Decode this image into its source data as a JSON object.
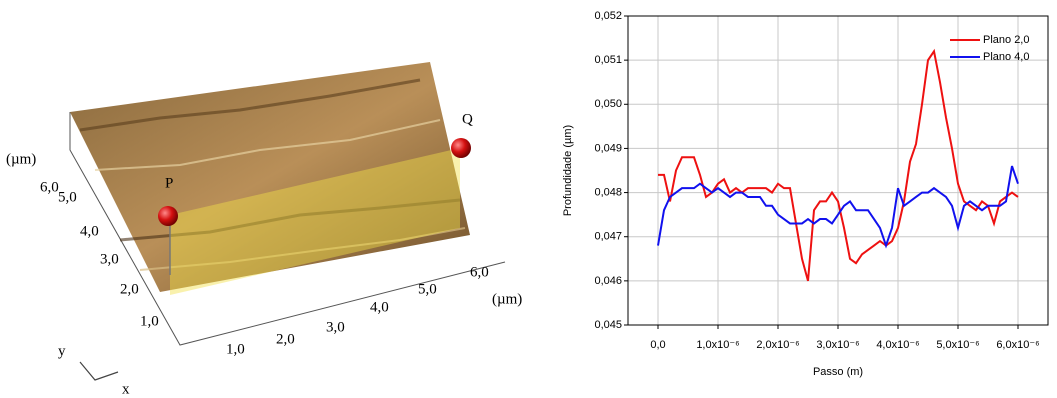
{
  "surface": {
    "unit_y": "(µm)",
    "y_labels": [
      "6,0",
      "5,0",
      "4,0",
      "3,0",
      "2,0",
      "1,0"
    ],
    "x_labels": [
      "1,0",
      "2,0",
      "3,0",
      "4,0",
      "5,0",
      "6,0"
    ],
    "unit_x": "(µm)",
    "point_p": "P",
    "point_q": "Q",
    "axis_y": "y",
    "axis_x": "x"
  },
  "chart_data": {
    "type": "line",
    "x_label": "Passo (m)",
    "y_label": "Profundidade (µm)",
    "xlim": [
      -5e-07,
      6.5e-06
    ],
    "ylim": [
      0.045,
      0.052
    ],
    "xticks": [
      {
        "value": 0,
        "label": "0,0"
      },
      {
        "value": 1e-06,
        "label": "1,0x10⁻⁶"
      },
      {
        "value": 2e-06,
        "label": "2,0x10⁻⁶"
      },
      {
        "value": 3e-06,
        "label": "3,0x10⁻⁶"
      },
      {
        "value": 4e-06,
        "label": "4,0x10⁻⁶"
      },
      {
        "value": 5e-06,
        "label": "5,0x10⁻⁶"
      },
      {
        "value": 6e-06,
        "label": "6,0x10⁻⁶"
      }
    ],
    "yticks": [
      {
        "value": 0.045,
        "label": "0,045"
      },
      {
        "value": 0.046,
        "label": "0,046"
      },
      {
        "value": 0.047,
        "label": "0,047"
      },
      {
        "value": 0.048,
        "label": "0,048"
      },
      {
        "value": 0.049,
        "label": "0,049"
      },
      {
        "value": 0.05,
        "label": "0,050"
      },
      {
        "value": 0.051,
        "label": "0,051"
      },
      {
        "value": 0.052,
        "label": "0,052"
      }
    ],
    "grid": true,
    "legend": "upper right",
    "x": [
      0,
      1e-07,
      2e-07,
      3e-07,
      4e-07,
      5e-07,
      6e-07,
      7e-07,
      8e-07,
      9e-07,
      1e-06,
      1.1e-06,
      1.2e-06,
      1.3e-06,
      1.4e-06,
      1.5e-06,
      1.6e-06,
      1.7e-06,
      1.8e-06,
      1.9e-06,
      2e-06,
      2.1e-06,
      2.2e-06,
      2.3e-06,
      2.4e-06,
      2.5e-06,
      2.6e-06,
      2.7e-06,
      2.8e-06,
      2.9e-06,
      3e-06,
      3.1e-06,
      3.2e-06,
      3.3e-06,
      3.4e-06,
      3.5e-06,
      3.6e-06,
      3.7e-06,
      3.8e-06,
      3.9e-06,
      4e-06,
      4.1e-06,
      4.2e-06,
      4.3e-06,
      4.4e-06,
      4.5e-06,
      4.6e-06,
      4.7e-06,
      4.8e-06,
      4.9e-06,
      5e-06,
      5.1e-06,
      5.2e-06,
      5.3e-06,
      5.4e-06,
      5.5e-06,
      5.6e-06,
      5.7e-06,
      5.8e-06,
      5.9e-06,
      6e-06
    ],
    "series": [
      {
        "name": "Plano 2,0",
        "color": "#ee1111",
        "values": [
          0.0484,
          0.0484,
          0.0478,
          0.0485,
          0.0488,
          0.0488,
          0.0488,
          0.0484,
          0.0479,
          0.048,
          0.0482,
          0.0483,
          0.048,
          0.0481,
          0.048,
          0.0481,
          0.0481,
          0.0481,
          0.0481,
          0.048,
          0.0482,
          0.0481,
          0.0481,
          0.0473,
          0.0465,
          0.046,
          0.0476,
          0.0478,
          0.0478,
          0.048,
          0.0478,
          0.0472,
          0.0465,
          0.0464,
          0.0466,
          0.0467,
          0.0468,
          0.0469,
          0.0468,
          0.0469,
          0.0472,
          0.0478,
          0.0487,
          0.0491,
          0.05,
          0.051,
          0.0512,
          0.0505,
          0.0497,
          0.049,
          0.0482,
          0.0478,
          0.0477,
          0.0476,
          0.0478,
          0.0477,
          0.0473,
          0.0478,
          0.0479,
          0.048,
          0.0479
        ]
      },
      {
        "name": "Plano 4,0",
        "color": "#1111ee",
        "values": [
          0.0468,
          0.0476,
          0.0479,
          0.048,
          0.0481,
          0.0481,
          0.0481,
          0.0482,
          0.0481,
          0.048,
          0.0481,
          0.048,
          0.0479,
          0.048,
          0.048,
          0.0479,
          0.0479,
          0.0479,
          0.0477,
          0.0477,
          0.0475,
          0.0474,
          0.0473,
          0.0473,
          0.0473,
          0.0474,
          0.0473,
          0.0474,
          0.0474,
          0.0473,
          0.0475,
          0.0477,
          0.0478,
          0.0476,
          0.0476,
          0.0476,
          0.0474,
          0.0472,
          0.0468,
          0.0472,
          0.0481,
          0.0477,
          0.0478,
          0.0479,
          0.048,
          0.048,
          0.0481,
          0.048,
          0.0479,
          0.0477,
          0.0472,
          0.0477,
          0.0478,
          0.0477,
          0.0476,
          0.0477,
          0.0477,
          0.0477,
          0.0478,
          0.0486,
          0.0482
        ]
      }
    ]
  }
}
